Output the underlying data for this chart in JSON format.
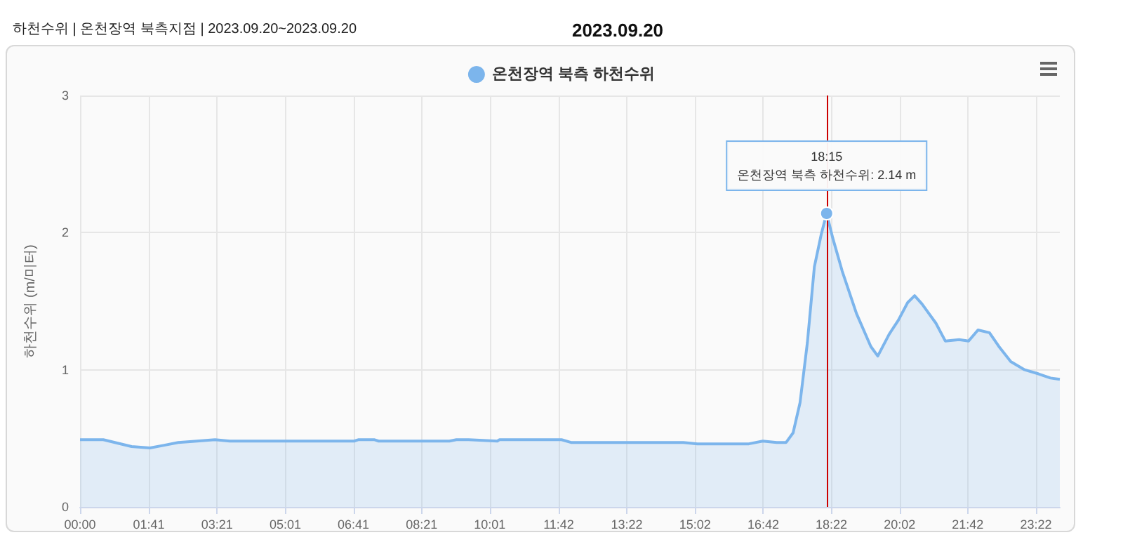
{
  "chart_data": {
    "type": "area",
    "title": "하천수위 | 온천장역 북측지점 | 2023.09.20~2023.09.20",
    "subtitle": "2023.09.20",
    "ylabel": "하천수위 (m/미터)",
    "x": [
      0,
      0.57,
      1.26,
      1.71,
      2.06,
      2.4,
      2.86,
      3.3,
      3.66,
      4.9,
      6.7,
      6.8,
      7.2,
      7.3,
      9.03,
      9.2,
      9.5,
      10.2,
      10.25,
      11.77,
      12.0,
      14.75,
      15.09,
      16.35,
      16.69,
      17.03,
      17.26,
      17.43,
      17.6,
      17.78,
      17.95,
      18.12,
      18.25,
      18.4,
      18.63,
      18.98,
      19.33,
      19.5,
      19.78,
      20.0,
      20.23,
      20.4,
      20.58,
      20.92,
      21.15,
      21.49,
      21.72,
      21.95,
      22.23,
      22.46,
      22.75,
      23.09,
      23.43,
      23.72,
      23.95
    ],
    "series": [
      {
        "name": "온천장역 북측 하천수위",
        "color": "#7cb5ec",
        "values": [
          0.49,
          0.49,
          0.44,
          0.43,
          0.45,
          0.47,
          0.48,
          0.49,
          0.48,
          0.48,
          0.48,
          0.49,
          0.49,
          0.48,
          0.48,
          0.49,
          0.49,
          0.48,
          0.49,
          0.49,
          0.47,
          0.47,
          0.46,
          0.46,
          0.48,
          0.47,
          0.47,
          0.54,
          0.76,
          1.2,
          1.75,
          1.99,
          2.14,
          1.96,
          1.72,
          1.41,
          1.17,
          1.1,
          1.26,
          1.36,
          1.49,
          1.54,
          1.48,
          1.34,
          1.21,
          1.22,
          1.21,
          1.29,
          1.27,
          1.17,
          1.06,
          1.0,
          0.97,
          0.94,
          0.93
        ]
      }
    ],
    "xlim": [
      0,
      23.95
    ],
    "xticks": [
      {
        "value": 0,
        "label": "00:00"
      },
      {
        "value": 1.6833,
        "label": "01:41"
      },
      {
        "value": 3.35,
        "label": "03:21"
      },
      {
        "value": 5.0167,
        "label": "05:01"
      },
      {
        "value": 6.6833,
        "label": "06:41"
      },
      {
        "value": 8.35,
        "label": "08:21"
      },
      {
        "value": 10.0167,
        "label": "10:01"
      },
      {
        "value": 11.7,
        "label": "11:42"
      },
      {
        "value": 13.3667,
        "label": "13:22"
      },
      {
        "value": 15.0333,
        "label": "15:02"
      },
      {
        "value": 16.7,
        "label": "16:42"
      },
      {
        "value": 18.3667,
        "label": "18:22"
      },
      {
        "value": 20.0333,
        "label": "20:02"
      },
      {
        "value": 21.7,
        "label": "21:42"
      },
      {
        "value": 23.3667,
        "label": "23:22"
      }
    ],
    "ylim": [
      0,
      3
    ],
    "yticks": [
      0,
      1,
      2,
      3
    ],
    "ref_lines": [
      {
        "axis": "x",
        "value": 18.25,
        "color": "#cc0000"
      }
    ],
    "annotations": [
      {
        "text": "18:15\n온천장역 북측 하천수위: 2.14 m",
        "x": 18.25,
        "y": 2.14
      }
    ],
    "grid": true,
    "legend": "top",
    "marker": "none"
  }
}
